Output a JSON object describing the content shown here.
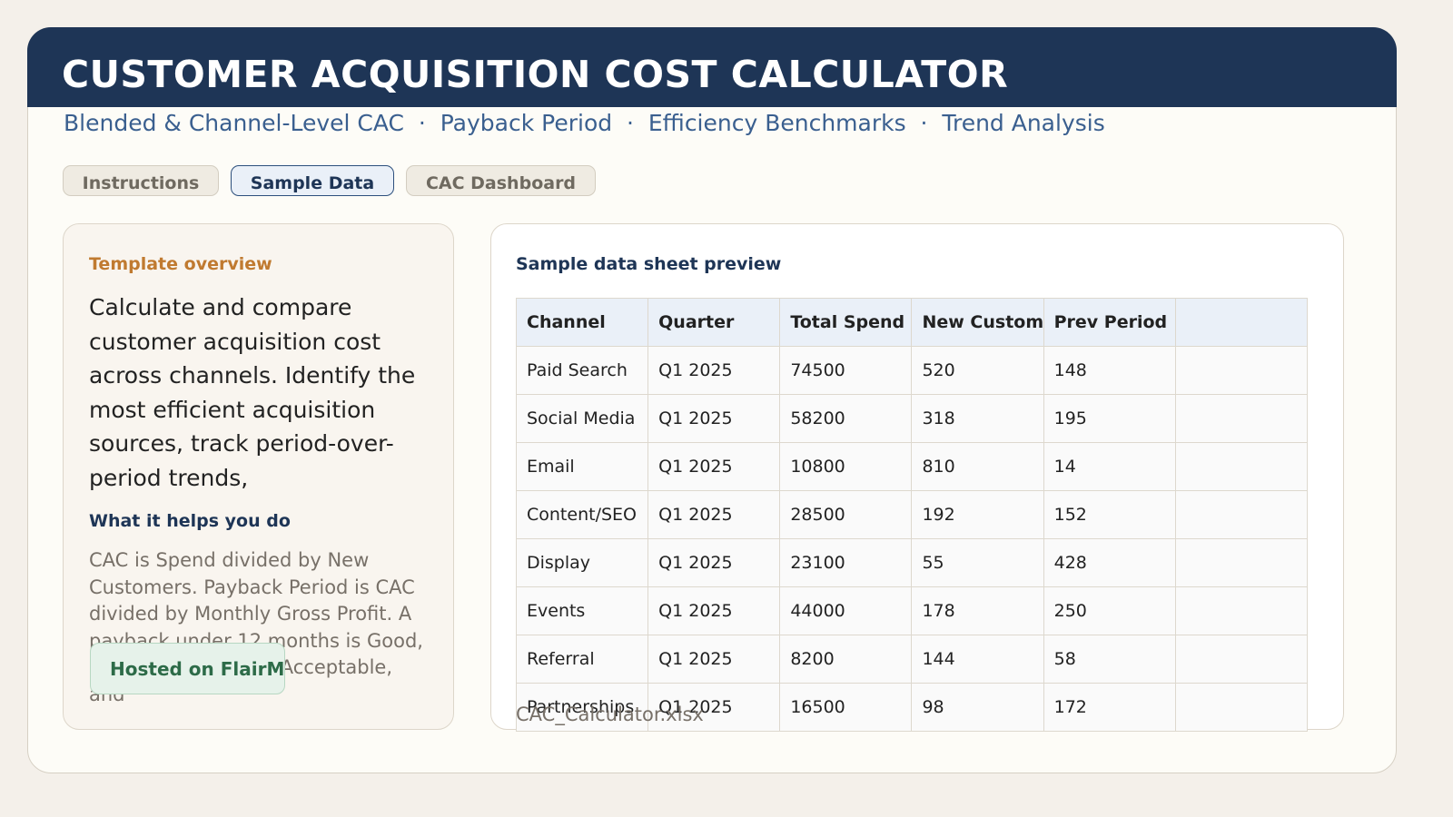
{
  "header": {
    "title": "CUSTOMER ACQUISITION COST CALCULATOR",
    "subtitle": "Blended & Channel-Level CAC  ·  Payback Period  ·  Efficiency Benchmarks  ·  Trend Analysis"
  },
  "tabs": [
    "Instructions",
    "Sample Data",
    "CAC Dashboard"
  ],
  "overview": {
    "label": "Template overview",
    "text": "Calculate and compare customer acquisition cost across channels. Identify the most efficient acquisition sources, track period-over-period trends,",
    "subheading": "What it helps you do",
    "detail": "CAC is Spend divided by New Customers. Payback Period is CAC divided by Monthly Gross Profit. A payback under 12 months is Good, under 18 months is Acceptable, and"
  },
  "badge": "Hosted on FlairML",
  "preview": {
    "title": "Sample data sheet preview",
    "filename": "CAC_Calculator.xlsx"
  },
  "table": {
    "columns": [
      "Channel",
      "Quarter",
      "Total Spend",
      "New Customers",
      "Prev Period"
    ],
    "rows": [
      [
        "Paid Search",
        "Q1 2025",
        "74500",
        "520",
        "148"
      ],
      [
        "Social Media",
        "Q1 2025",
        "58200",
        "318",
        "195"
      ],
      [
        "Email",
        "Q1 2025",
        "10800",
        "810",
        "14"
      ],
      [
        "Content/SEO",
        "Q1 2025",
        "28500",
        "192",
        "152"
      ],
      [
        "Display",
        "Q1 2025",
        "23100",
        "55",
        "428"
      ],
      [
        "Events",
        "Q1 2025",
        "44000",
        "178",
        "250"
      ],
      [
        "Referral",
        "Q1 2025",
        "8200",
        "144",
        "58"
      ],
      [
        "Partnerships",
        "Q1 2025",
        "16500",
        "98",
        "172"
      ]
    ]
  }
}
